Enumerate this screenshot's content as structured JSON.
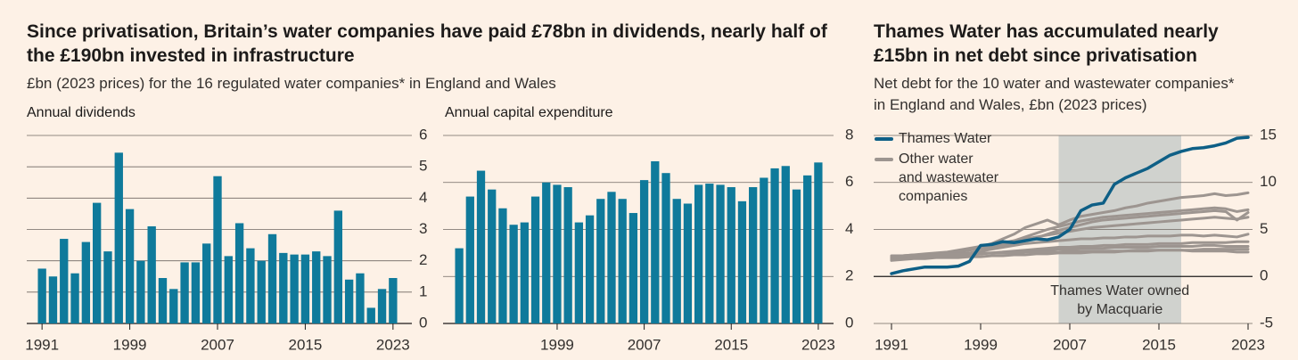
{
  "headline": {
    "title": "Since privatisation, Britain’s water companies have paid £78bn in dividends, nearly half of the £190bn invested in infrastructure",
    "subtitle": "£bn (2023 prices) for the 16 regulated water companies* in England and Wales"
  },
  "chart_data": [
    {
      "type": "bar",
      "title": "Annual dividends",
      "color": "#0f7a9b",
      "grid": true,
      "x": [
        1991,
        1992,
        1993,
        1994,
        1995,
        1996,
        1997,
        1998,
        1999,
        2000,
        2001,
        2002,
        2003,
        2004,
        2005,
        2006,
        2007,
        2008,
        2009,
        2010,
        2011,
        2012,
        2013,
        2014,
        2015,
        2016,
        2017,
        2018,
        2019,
        2020,
        2021,
        2022,
        2023
      ],
      "values": [
        1.75,
        1.5,
        2.7,
        1.6,
        2.6,
        3.85,
        2.3,
        5.45,
        3.65,
        2.0,
        3.1,
        1.45,
        1.1,
        1.95,
        1.95,
        2.55,
        4.7,
        2.15,
        3.2,
        2.4,
        2.0,
        2.85,
        2.25,
        2.2,
        2.2,
        2.3,
        2.15,
        3.6,
        1.4,
        1.6,
        0.5,
        1.1,
        1.45
      ],
      "xlim": [
        1990.5,
        2023.5
      ],
      "xticks": [
        1991,
        1999,
        2007,
        2015,
        2023
      ],
      "ylim": [
        0,
        6
      ],
      "yticks": [
        0,
        1,
        2,
        3,
        4,
        5,
        6
      ]
    },
    {
      "type": "bar",
      "title": "Annual capital expenditure",
      "color": "#0f7a9b",
      "grid": true,
      "x": [
        1990,
        1991,
        1992,
        1993,
        1994,
        1995,
        1996,
        1997,
        1998,
        1999,
        2000,
        2001,
        2002,
        2003,
        2004,
        2005,
        2006,
        2007,
        2008,
        2009,
        2010,
        2011,
        2012,
        2013,
        2014,
        2015,
        2016,
        2017,
        2018,
        2019,
        2020,
        2021,
        2022,
        2023
      ],
      "values": [
        3.2,
        5.4,
        6.5,
        5.7,
        4.9,
        4.2,
        4.3,
        5.4,
        6.0,
        5.9,
        5.8,
        4.3,
        4.6,
        5.3,
        5.6,
        5.3,
        4.7,
        6.1,
        6.9,
        6.4,
        5.3,
        5.1,
        5.9,
        5.95,
        5.9,
        5.8,
        5.2,
        5.8,
        6.2,
        6.6,
        6.7,
        5.7,
        6.3,
        6.85
      ],
      "xlim": [
        1989.5,
        2023.5
      ],
      "xticks": [
        1999,
        2007,
        2015,
        2023
      ],
      "ylim": [
        0,
        8
      ],
      "yticks": [
        0,
        2,
        4,
        6,
        8
      ]
    },
    {
      "type": "line",
      "title": "Thames Water has accumulated nearly £15bn in net debt since privatisation",
      "subtitle": "Net debt for the 10 water and wastewater companies* in England and Wales, £bn (2023 prices)",
      "grid": true,
      "x": [
        1991,
        1992,
        1993,
        1994,
        1995,
        1996,
        1997,
        1998,
        1999,
        2000,
        2001,
        2002,
        2003,
        2004,
        2005,
        2006,
        2007,
        2008,
        2009,
        2010,
        2011,
        2012,
        2013,
        2014,
        2015,
        2016,
        2017,
        2018,
        2019,
        2020,
        2021,
        2022,
        2023
      ],
      "series": [
        {
          "name": "Thames Water",
          "color": "#0e5f86",
          "values": [
            0.3,
            0.6,
            0.8,
            1.0,
            1.0,
            1.0,
            1.1,
            1.6,
            3.3,
            3.4,
            3.7,
            3.6,
            3.8,
            4.0,
            3.9,
            4.2,
            5.0,
            7.0,
            7.6,
            7.8,
            9.8,
            10.5,
            11.0,
            11.5,
            12.2,
            12.9,
            13.3,
            13.6,
            13.7,
            13.9,
            14.2,
            14.7,
            14.8
          ]
        },
        {
          "name": "Other water and wastewater companies",
          "color": "#9d9590",
          "lines": [
            [
              2.0,
              2.1,
              2.2,
              2.3,
              2.4,
              2.5,
              2.6,
              2.9,
              3.2,
              3.5,
              4.0,
              4.5,
              5.2,
              5.6,
              6.0,
              5.5,
              6.0,
              6.4,
              6.6,
              6.8,
              7.0,
              7.3,
              7.5,
              7.8,
              8.0,
              8.2,
              8.4,
              8.5,
              8.6,
              8.8,
              8.6,
              8.7,
              8.9
            ],
            [
              1.9,
              2.0,
              2.1,
              2.2,
              2.3,
              2.4,
              2.6,
              2.8,
              3.0,
              3.2,
              3.5,
              3.8,
              4.2,
              4.6,
              5.0,
              5.3,
              5.6,
              5.9,
              6.1,
              6.3,
              6.4,
              6.5,
              6.6,
              6.7,
              6.8,
              6.9,
              7.0,
              7.1,
              7.2,
              7.3,
              7.2,
              6.9,
              7.1
            ],
            [
              1.8,
              1.9,
              2.0,
              2.1,
              2.3,
              2.5,
              2.7,
              2.9,
              3.0,
              3.1,
              3.3,
              3.5,
              3.8,
              4.1,
              4.5,
              4.9,
              5.2,
              5.5,
              5.8,
              6.0,
              6.1,
              6.2,
              6.3,
              6.4,
              6.5,
              6.6,
              6.7,
              6.8,
              6.9,
              7.0,
              6.9,
              6.0,
              6.8
            ],
            [
              2.1,
              2.2,
              2.3,
              2.4,
              2.5,
              2.6,
              2.8,
              3.0,
              3.2,
              3.4,
              3.6,
              3.8,
              4.0,
              4.2,
              4.4,
              4.6,
              4.8,
              5.0,
              5.2,
              5.3,
              5.4,
              5.5,
              5.6,
              5.7,
              5.8,
              5.9,
              6.0,
              6.1,
              6.2,
              6.3,
              6.2,
              6.1,
              6.3
            ],
            [
              1.9,
              2.0,
              2.0,
              2.1,
              2.2,
              2.3,
              2.4,
              2.5,
              2.7,
              2.9,
              3.1,
              3.3,
              3.5,
              3.6,
              3.7,
              3.8,
              3.9,
              4.0,
              4.0,
              4.1,
              4.1,
              4.2,
              4.2,
              4.3,
              4.3,
              4.3,
              4.4,
              4.4,
              4.3,
              4.4,
              4.3,
              4.2,
              4.5
            ],
            [
              1.8,
              1.9,
              2.0,
              2.0,
              2.1,
              2.1,
              2.2,
              2.3,
              2.4,
              2.5,
              2.6,
              2.7,
              2.8,
              2.9,
              3.0,
              3.1,
              3.1,
              3.2,
              3.2,
              3.3,
              3.3,
              3.4,
              3.4,
              3.4,
              3.5,
              3.5,
              3.5,
              3.6,
              3.6,
              3.6,
              3.6,
              3.7,
              3.7
            ],
            [
              2.0,
              2.0,
              2.1,
              2.1,
              2.2,
              2.2,
              2.3,
              2.3,
              2.4,
              2.5,
              2.6,
              2.6,
              2.7,
              2.8,
              2.8,
              2.9,
              2.9,
              3.0,
              3.0,
              3.0,
              3.1,
              3.1,
              3.1,
              3.1,
              3.2,
              3.2,
              3.2,
              3.2,
              3.3,
              3.3,
              3.2,
              3.2,
              3.2
            ],
            [
              1.7,
              1.8,
              1.9,
              1.9,
              2.0,
              2.0,
              2.0,
              2.1,
              2.1,
              2.2,
              2.2,
              2.3,
              2.3,
              2.4,
              2.4,
              2.5,
              2.5,
              2.5,
              2.6,
              2.6,
              2.6,
              2.7,
              2.7,
              2.7,
              2.8,
              2.8,
              2.8,
              2.8,
              2.9,
              2.9,
              2.9,
              2.9,
              2.9
            ],
            [
              2.2,
              2.2,
              2.3,
              2.3,
              2.3,
              2.4,
              2.4,
              2.4,
              2.5,
              2.5,
              2.5,
              2.5,
              2.6,
              2.6,
              2.6,
              2.6,
              2.7,
              2.7,
              2.7,
              2.7,
              2.7,
              2.7,
              2.8,
              2.8,
              2.8,
              2.8,
              2.8,
              2.7,
              2.7,
              2.7,
              2.7,
              2.6,
              2.6
            ]
          ]
        }
      ],
      "annotation": {
        "text": "Thames Water owned by Macquarie",
        "span": [
          2006,
          2017
        ],
        "color": "#c8cdc9"
      },
      "xlim": [
        1991,
        2023
      ],
      "xticks": [
        1991,
        1999,
        2007,
        2015,
        2023
      ],
      "ylim": [
        -5,
        15
      ],
      "yticks": [
        -5,
        0,
        5,
        10,
        15
      ]
    }
  ]
}
